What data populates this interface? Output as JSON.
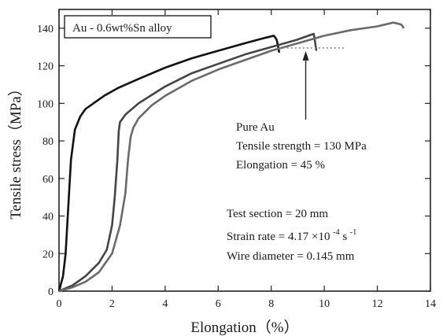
{
  "chart_data": {
    "type": "line",
    "title": "",
    "xlabel": "Elongation（%）",
    "ylabel": "Tensile stress（MPa）",
    "xlim": [
      0,
      14
    ],
    "ylim": [
      0,
      150
    ],
    "x_ticks": [
      "0",
      "2",
      "4",
      "6",
      "8",
      "10",
      "12",
      "14"
    ],
    "y_ticks": [
      "0",
      "20",
      "40",
      "60",
      "80",
      "100",
      "120",
      "140"
    ],
    "grid": false,
    "legend_box": "Au - 0.6wt%Sn alloy",
    "colors": {
      "curve_dark": "#111111",
      "curve_gray": "#555555",
      "reference": "#888888"
    },
    "series": [
      {
        "color": "#111111",
        "x": [
          0,
          0.15,
          0.25,
          0.35,
          0.45,
          0.6,
          0.8,
          1.0,
          1.3,
          1.7,
          2.2,
          3,
          4,
          5,
          6,
          7,
          7.8,
          8.1,
          8.2,
          8.25,
          8.3
        ],
        "y": [
          0,
          8,
          20,
          45,
          70,
          86,
          93,
          97,
          100,
          104,
          108,
          113,
          119,
          124,
          128,
          132,
          135,
          136,
          134,
          131,
          127
        ]
      },
      {
        "color": "#444444",
        "x": [
          0,
          0.5,
          1.0,
          1.5,
          1.8,
          2.0,
          2.1,
          2.2,
          2.25,
          2.3,
          2.5,
          3,
          4,
          5,
          6,
          7,
          8,
          9,
          9.4,
          9.6,
          9.65,
          9.7
        ],
        "y": [
          0,
          3,
          8,
          15,
          22,
          35,
          50,
          70,
          85,
          90,
          94,
          100,
          109,
          116,
          121,
          126,
          130,
          134,
          136,
          137,
          133,
          128
        ]
      },
      {
        "color": "#6a6a6a",
        "x": [
          0,
          0.5,
          1.0,
          1.5,
          2.0,
          2.3,
          2.5,
          2.6,
          2.7,
          2.8,
          3,
          3.5,
          4,
          5,
          6,
          7,
          8,
          9,
          10,
          11,
          12,
          12.6,
          12.9,
          13.0
        ],
        "y": [
          0,
          2,
          5,
          10,
          20,
          35,
          52,
          70,
          82,
          87,
          92,
          99,
          104,
          112,
          118,
          123,
          128,
          132,
          136,
          139,
          141,
          143,
          142,
          140
        ]
      }
    ],
    "reference_line": {
      "y": 129.5,
      "x_start": 8.3,
      "x_end": 14
    },
    "arrow_x": 9.3,
    "annotations": {
      "pure_au": {
        "line1": "Pure Au",
        "line2": "Tensile strength = 130 MPa",
        "line3": "Elongation = 45 %"
      },
      "test": {
        "section": "Test section = 20 mm",
        "strain_prefix": "Strain rate = 4.17 ×10",
        "strain_exp": "-4",
        "strain_unit": " s",
        "strain_unit_exp": "-1",
        "wire": "Wire diameter = 0.145 mm"
      }
    }
  }
}
